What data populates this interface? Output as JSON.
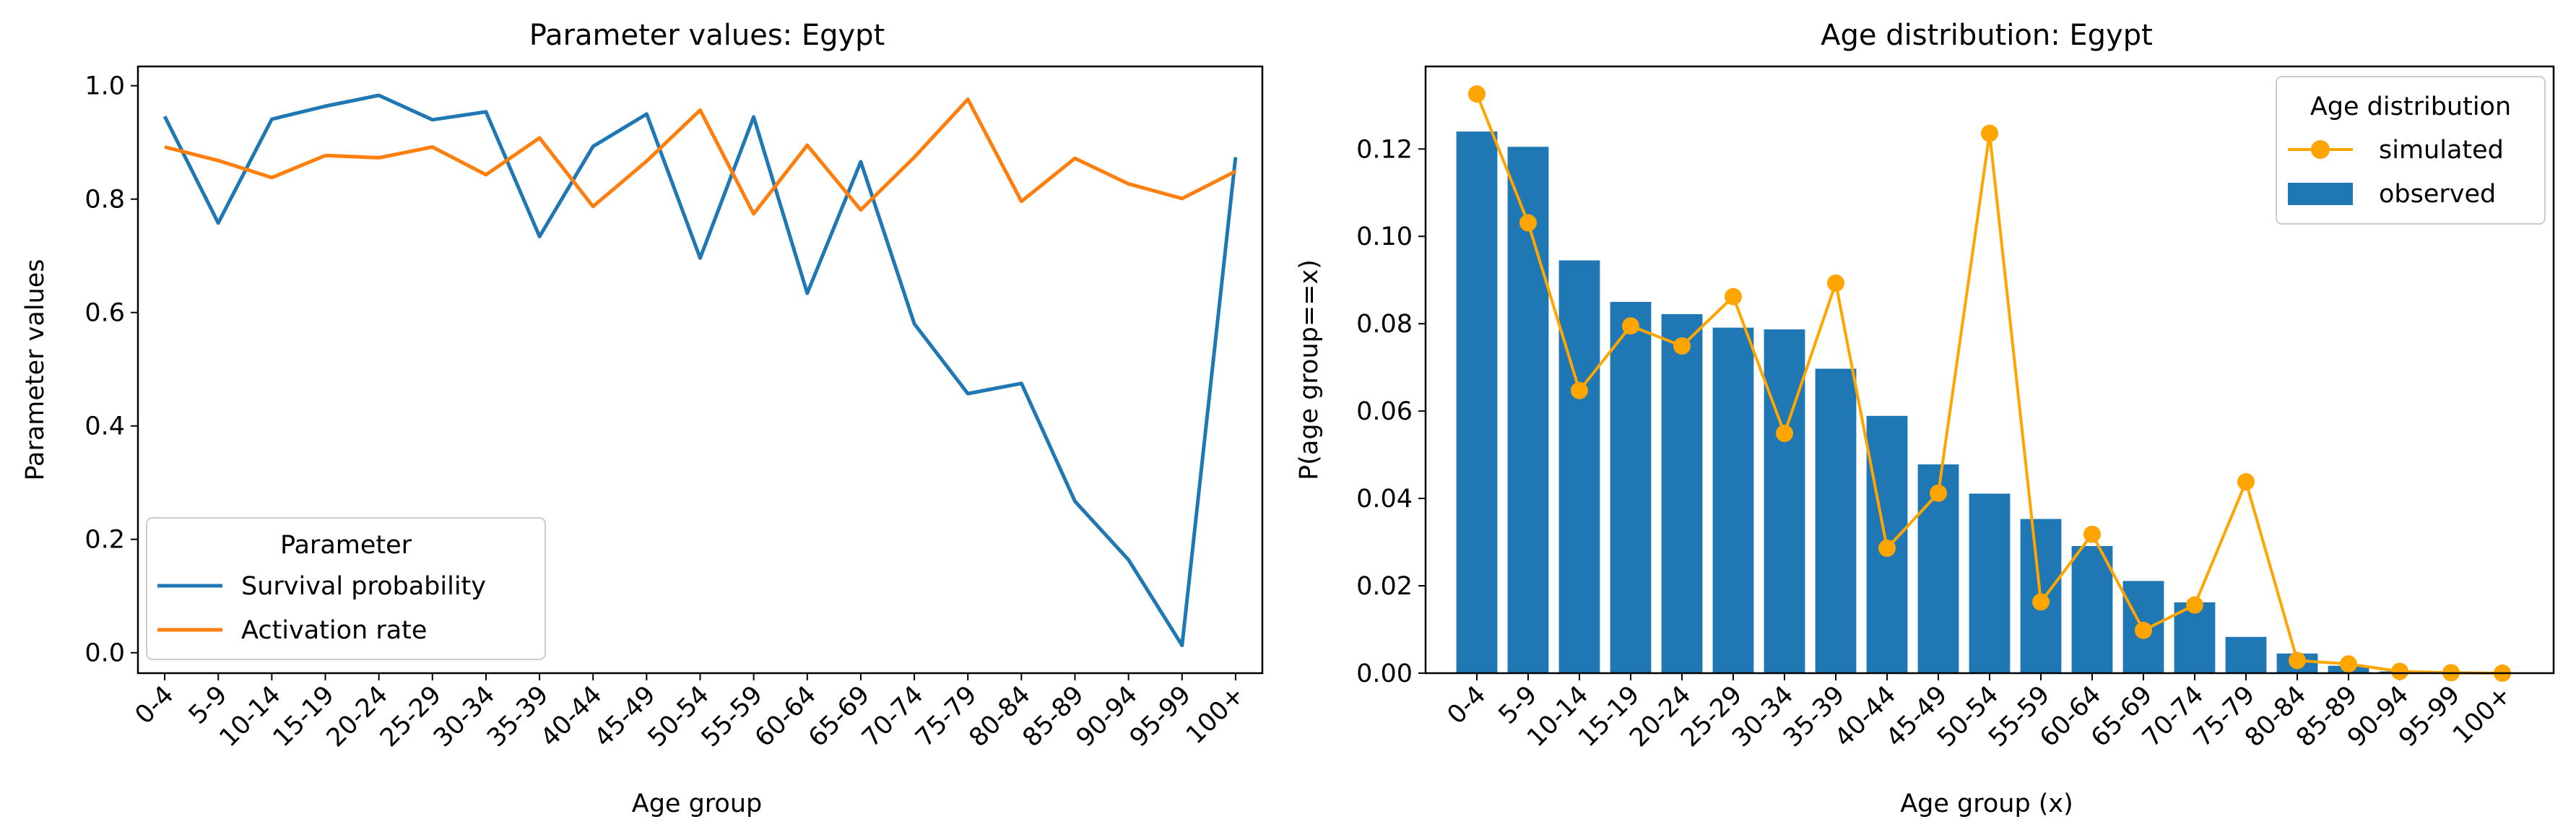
{
  "chart_data": [
    {
      "type": "line",
      "title": "Parameter values: Egypt",
      "xlabel": "Age group",
      "ylabel": "Parameter values",
      "categories": [
        "0-4",
        "5-9",
        "10-14",
        "15-19",
        "20-24",
        "25-29",
        "30-34",
        "35-39",
        "40-44",
        "45-49",
        "50-54",
        "55-59",
        "60-64",
        "65-69",
        "70-74",
        "75-79",
        "80-84",
        "85-89",
        "90-94",
        "95-99",
        "100+"
      ],
      "ylim": [
        -0.036,
        1.034
      ],
      "yticks": [
        0.0,
        0.2,
        0.4,
        0.6,
        0.8,
        1.0
      ],
      "grid": false,
      "legend_title": "Parameter",
      "legend_position": "lower-left",
      "series": [
        {
          "name": "Survival probability",
          "color": "#1f77b4",
          "values": [
            0.946,
            0.758,
            0.941,
            0.964,
            0.983,
            0.94,
            0.954,
            0.734,
            0.893,
            0.95,
            0.696,
            0.945,
            0.634,
            0.866,
            0.58,
            0.457,
            0.475,
            0.267,
            0.164,
            0.013,
            0.874
          ]
        },
        {
          "name": "Activation rate",
          "color": "#ff7f0e",
          "values": [
            0.892,
            0.868,
            0.838,
            0.877,
            0.873,
            0.892,
            0.843,
            0.908,
            0.787,
            0.867,
            0.957,
            0.774,
            0.895,
            0.781,
            0.874,
            0.976,
            0.796,
            0.872,
            0.827,
            0.801,
            0.849
          ]
        }
      ]
    },
    {
      "type": "bar",
      "title": "Age distribution: Egypt",
      "xlabel": "Age group (x)",
      "ylabel": "P(age group==x)",
      "categories": [
        "0-4",
        "5-9",
        "10-14",
        "15-19",
        "20-24",
        "25-29",
        "30-34",
        "35-39",
        "40-44",
        "45-49",
        "50-54",
        "55-59",
        "60-64",
        "65-69",
        "70-74",
        "75-79",
        "80-84",
        "85-89",
        "90-94",
        "95-99",
        "100+"
      ],
      "ylim": [
        0,
        0.1389
      ],
      "yticks": [
        0.0,
        0.02,
        0.04,
        0.06,
        0.08,
        0.1,
        0.12
      ],
      "ytick_labels": [
        "0.00",
        "0.02",
        "0.04",
        "0.06",
        "0.08",
        "0.10",
        "0.12"
      ],
      "grid": false,
      "legend_title": "Age distribution",
      "legend_position": "top-right",
      "series": [
        {
          "name": "observed",
          "kind": "bar",
          "color": "#1f77b4",
          "values": [
            0.124,
            0.1205,
            0.0945,
            0.085,
            0.0822,
            0.0791,
            0.0787,
            0.0697,
            0.0589,
            0.0478,
            0.0411,
            0.0353,
            0.0291,
            0.0211,
            0.0162,
            0.0083,
            0.0045,
            0.0017,
            0.0004,
            0.0001,
            3e-05
          ]
        },
        {
          "name": "simulated",
          "kind": "line-marker",
          "color": "#ffa500",
          "values": [
            0.1326,
            0.1031,
            0.0647,
            0.0795,
            0.0749,
            0.0862,
            0.0549,
            0.0893,
            0.0286,
            0.0412,
            0.1236,
            0.0163,
            0.0318,
            0.0098,
            0.0156,
            0.0438,
            0.0029,
            0.0021,
            0.0004,
            0.0001,
            0.0
          ]
        }
      ]
    }
  ]
}
